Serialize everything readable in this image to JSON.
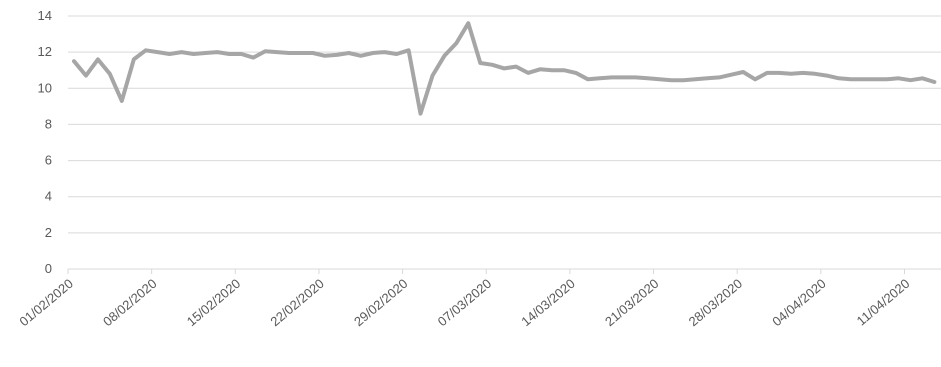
{
  "chart_data": {
    "type": "line",
    "title": "",
    "xlabel": "",
    "ylabel": "",
    "ylim": [
      0,
      14
    ],
    "yticks": [
      0,
      2,
      4,
      6,
      8,
      10,
      12,
      14
    ],
    "x_start": "01/02/2020",
    "x_end": "13/04/2020",
    "xtick_labels": [
      "01/02/2020",
      "08/02/2020",
      "15/02/2020",
      "22/02/2020",
      "29/02/2020",
      "07/03/2020",
      "14/03/2020",
      "21/03/2020",
      "28/03/2020",
      "04/04/2020",
      "11/04/2020"
    ],
    "grid": true,
    "legend": "none",
    "colors": {
      "line": "#a6a6a6",
      "grid": "#d9d9d9",
      "axis": "#d9d9d9",
      "text": "#595959"
    },
    "series": [
      {
        "values": [
          11.5,
          10.7,
          11.6,
          10.8,
          9.3,
          11.6,
          12.1,
          12.0,
          11.9,
          12.0,
          11.9,
          11.95,
          12.0,
          11.9,
          11.9,
          11.7,
          12.05,
          12.0,
          11.95,
          11.95,
          11.95,
          11.8,
          11.85,
          11.95,
          11.8,
          11.95,
          12.0,
          11.9,
          12.1,
          8.6,
          10.7,
          11.8,
          12.5,
          13.6,
          11.4,
          11.3,
          11.1,
          11.2,
          10.85,
          11.05,
          11.0,
          11.0,
          10.85,
          10.5,
          10.55,
          10.6,
          10.6,
          10.6,
          10.55,
          10.5,
          10.45,
          10.45,
          10.5,
          10.55,
          10.6,
          10.75,
          10.9,
          10.5,
          10.85,
          10.85,
          10.8,
          10.85,
          10.8,
          10.7,
          10.55,
          10.5,
          10.5,
          10.5,
          10.5,
          10.55,
          10.45,
          10.55,
          10.35
        ]
      }
    ]
  }
}
